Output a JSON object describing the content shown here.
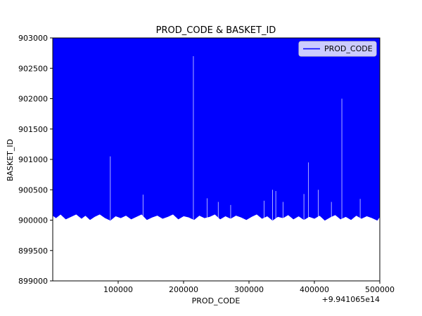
{
  "chart_data": {
    "type": "line",
    "title": "PROD_CODE & BASKET_ID",
    "xlabel": "PROD_CODE",
    "ylabel": "BASKET_ID",
    "x_offset_label": "+9.941065e14",
    "xlim": [
      0,
      500000
    ],
    "ylim": [
      899000,
      903000
    ],
    "x_ticks": [
      100000,
      200000,
      300000,
      400000,
      500000
    ],
    "x_tick_labels": [
      "100000",
      "200000",
      "300000",
      "400000",
      "500000"
    ],
    "y_ticks": [
      899000,
      899500,
      900000,
      900500,
      901000,
      901500,
      902000,
      902500,
      903000
    ],
    "y_tick_labels": [
      "899000",
      "899500",
      "900000",
      "900500",
      "901000",
      "901500",
      "902000",
      "902500",
      "903000"
    ],
    "grid": false,
    "legend_position": "top-right",
    "series": [
      {
        "name": "PROD_CODE",
        "color": "#0000ff",
        "fill_top": 903000,
        "lower_envelope": [
          [
            0,
            900080
          ],
          [
            5000,
            900040
          ],
          [
            12000,
            900100
          ],
          [
            20000,
            900020
          ],
          [
            28000,
            900060
          ],
          [
            36000,
            900100
          ],
          [
            44000,
            900030
          ],
          [
            50000,
            900080
          ],
          [
            57000,
            900010
          ],
          [
            64000,
            900060
          ],
          [
            72000,
            900100
          ],
          [
            80000,
            900040
          ],
          [
            88000,
            900000
          ],
          [
            96000,
            900070
          ],
          [
            104000,
            900040
          ],
          [
            112000,
            900080
          ],
          [
            120000,
            900020
          ],
          [
            128000,
            900060
          ],
          [
            136000,
            900100
          ],
          [
            144000,
            900010
          ],
          [
            152000,
            900050
          ],
          [
            160000,
            900080
          ],
          [
            168000,
            900030
          ],
          [
            176000,
            900060
          ],
          [
            184000,
            900100
          ],
          [
            192000,
            900020
          ],
          [
            200000,
            900070
          ],
          [
            208000,
            900050
          ],
          [
            216000,
            900010
          ],
          [
            224000,
            900080
          ],
          [
            232000,
            900040
          ],
          [
            240000,
            900060
          ],
          [
            248000,
            900100
          ],
          [
            256000,
            900020
          ],
          [
            264000,
            900070
          ],
          [
            272000,
            900030
          ],
          [
            280000,
            900080
          ],
          [
            288000,
            900050
          ],
          [
            296000,
            900010
          ],
          [
            304000,
            900060
          ],
          [
            312000,
            900100
          ],
          [
            320000,
            900030
          ],
          [
            328000,
            900070
          ],
          [
            336000,
            900000
          ],
          [
            344000,
            900060
          ],
          [
            352000,
            900040
          ],
          [
            360000,
            900090
          ],
          [
            368000,
            900020
          ],
          [
            376000,
            900070
          ],
          [
            384000,
            900010
          ],
          [
            392000,
            900060
          ],
          [
            400000,
            900030
          ],
          [
            408000,
            900080
          ],
          [
            416000,
            900000
          ],
          [
            424000,
            900050
          ],
          [
            432000,
            900090
          ],
          [
            440000,
            900020
          ],
          [
            448000,
            900060
          ],
          [
            456000,
            900010
          ],
          [
            464000,
            900080
          ],
          [
            472000,
            900030
          ],
          [
            480000,
            900070
          ],
          [
            488000,
            900040
          ],
          [
            496000,
            900000
          ],
          [
            500000,
            900060
          ]
        ],
        "spikes": [
          [
            88000,
            901050
          ],
          [
            138000,
            900420
          ],
          [
            215000,
            902700
          ],
          [
            236000,
            900360
          ],
          [
            253000,
            900300
          ],
          [
            272000,
            900250
          ],
          [
            323000,
            900320
          ],
          [
            336000,
            900500
          ],
          [
            341000,
            900480
          ],
          [
            352000,
            900300
          ],
          [
            384000,
            900430
          ],
          [
            391000,
            900950
          ],
          [
            406000,
            900500
          ],
          [
            426000,
            900300
          ],
          [
            442000,
            902000
          ],
          [
            470000,
            900350
          ]
        ]
      }
    ]
  }
}
